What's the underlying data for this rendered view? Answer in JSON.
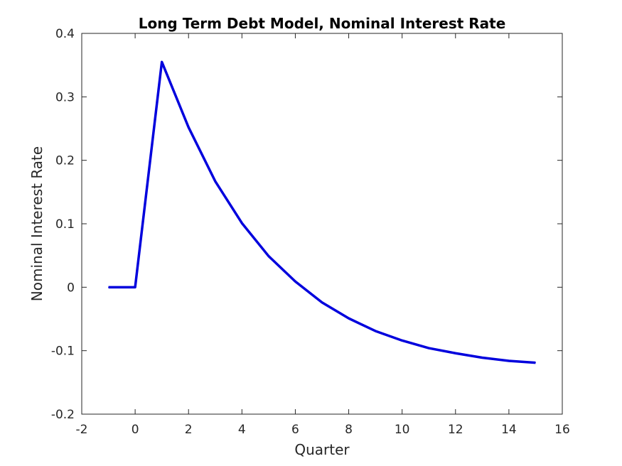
{
  "chart_data": {
    "type": "line",
    "title": "Long Term Debt Model, Nominal Interest Rate",
    "xlabel": "Quarter",
    "ylabel": "Nominal Interest Rate",
    "xlim": [
      -2,
      16
    ],
    "ylim": [
      -0.2,
      0.4
    ],
    "xticks": [
      -2,
      0,
      2,
      4,
      6,
      8,
      10,
      12,
      14,
      16
    ],
    "yticks": [
      -0.2,
      -0.1,
      0,
      0.1,
      0.2,
      0.3,
      0.4
    ],
    "xtick_labels": [
      "-2",
      "0",
      "2",
      "4",
      "6",
      "8",
      "10",
      "12",
      "14",
      "16"
    ],
    "ytick_labels": [
      "-0.2",
      "-0.1",
      "0",
      "0.1",
      "0.2",
      "0.3",
      "0.4"
    ],
    "grid": false,
    "series": [
      {
        "color": "#0000dd",
        "x": [
          -1,
          0,
          1,
          2,
          3,
          4,
          5,
          6,
          7,
          8,
          9,
          10,
          11,
          12,
          13,
          14,
          15
        ],
        "y": [
          0,
          0,
          0.355,
          0.252,
          0.167,
          0.101,
          0.049,
          0.009,
          -0.024,
          -0.049,
          -0.069,
          -0.084,
          -0.096,
          -0.104,
          -0.111,
          -0.116,
          -0.119
        ]
      }
    ]
  }
}
